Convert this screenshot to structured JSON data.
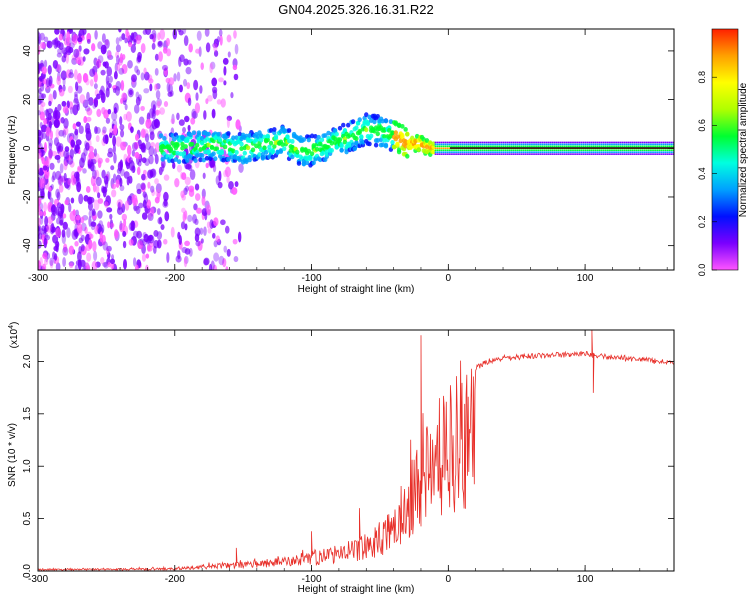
{
  "title": "GN04.2025.326.16.31.R22",
  "colors": {
    "snr_line": "#e8302a",
    "colorbar": [
      "#ff55ff",
      "#7a00ff",
      "#0010ff",
      "#00a0ff",
      "#00ffe0",
      "#00ff30",
      "#b0ff00",
      "#ffff00",
      "#ffa000",
      "#ff2000"
    ]
  },
  "chart_data": [
    {
      "type": "heatmap",
      "title": "GN04.2025.326.16.31.R22",
      "xlabel": "Height of straight line (km)",
      "ylabel": "Frequency (Hz)",
      "xlim": [
        -300,
        165
      ],
      "ylim": [
        -50,
        49
      ],
      "x_ticks": [
        "-300",
        "-200",
        "-100",
        "0",
        "100"
      ],
      "y_ticks": [
        "-40",
        "-20",
        "0",
        "20",
        "40"
      ],
      "colorbar": {
        "label": "Normalized spectral amplitude",
        "range": [
          0,
          1
        ],
        "ticks": [
          "0.0",
          "0.2",
          "0.4",
          "0.6",
          "0.8"
        ]
      },
      "ridge": {
        "x": [
          -210,
          -200,
          -190,
          -180,
          -170,
          -160,
          -150,
          -140,
          -130,
          -120,
          -110,
          -100,
          -90,
          -80,
          -70,
          -60,
          -50,
          -40,
          -30,
          -20,
          -15,
          -10,
          -5,
          0,
          165
        ],
        "freq": [
          0,
          0,
          0.5,
          1,
          1.5,
          0.5,
          0,
          1,
          2,
          3,
          -1,
          -1,
          1,
          3,
          5,
          8,
          7,
          5,
          2,
          2,
          0,
          0,
          0,
          0,
          0
        ]
      },
      "noise_region_x": [
        -300,
        -160
      ],
      "grid": false
    },
    {
      "type": "line",
      "xlabel": "Height of straight line (km)",
      "ylabel": "SNR (10 * v/v)",
      "y_multiplier": "(x10",
      "y_multiplier_exp": "4",
      "xlim": [
        -300,
        165
      ],
      "ylim": [
        0,
        2.3
      ],
      "x_ticks": [
        "-300",
        "-200",
        "-100",
        "0",
        "100"
      ],
      "y_ticks": [
        "0.0",
        "0.5",
        "1.0",
        "1.5",
        "2.0"
      ],
      "envelope": {
        "x": [
          -300,
          -200,
          -180,
          -150,
          -120,
          -100,
          -80,
          -60,
          -40,
          -30,
          -20,
          -10,
          0,
          10,
          20,
          30,
          40,
          60,
          80,
          100,
          110,
          130,
          165
        ],
        "y": [
          0.02,
          0.03,
          0.06,
          0.09,
          0.13,
          0.18,
          0.25,
          0.35,
          0.6,
          1.0,
          1.35,
          1.6,
          1.8,
          1.9,
          1.97,
          2.03,
          2.06,
          2.08,
          2.09,
          2.1,
          2.08,
          2.06,
          2.01
        ]
      },
      "spikes": [
        {
          "x": -155,
          "y": 0.22
        },
        {
          "x": -100,
          "y": 0.38
        },
        {
          "x": -65,
          "y": 0.6
        },
        {
          "x": -20,
          "y": 2.25
        },
        {
          "x": 105,
          "y": 2.3
        },
        {
          "x": 106,
          "y": 1.7
        }
      ],
      "grid": false
    }
  ]
}
